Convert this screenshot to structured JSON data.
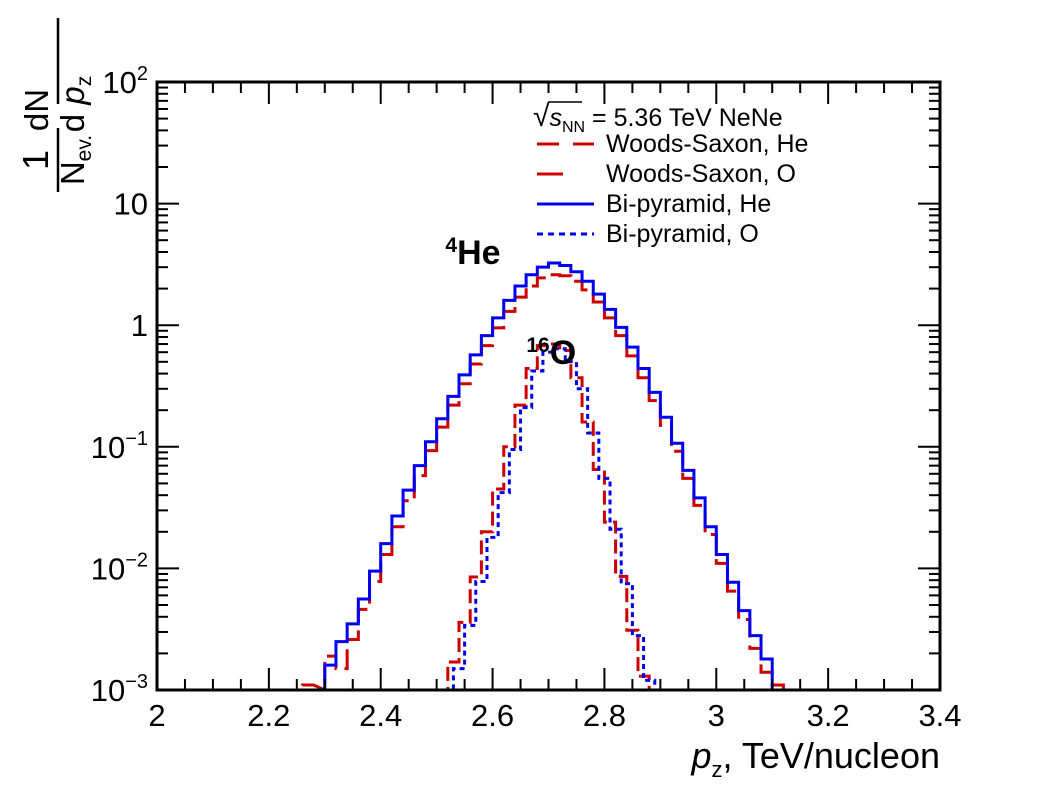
{
  "chart_data": {
    "type": "line",
    "style": "step-histogram",
    "xlabel_var": "p",
    "xlabel_sub": "z",
    "xlabel_rest": ", TeV/nucleon",
    "ylabel": {
      "frac1_num": "1",
      "frac1_den": "N",
      "frac1_den_sub": "ev.",
      "frac2_num": "dN",
      "frac2_den_d": "d ",
      "frac2_den_var": "p",
      "frac2_den_sub": "z"
    },
    "x_range": [
      2.0,
      3.4
    ],
    "y_range": [
      0.001,
      100
    ],
    "y_scale": "log",
    "x_ticks": [
      {
        "value": 2.0,
        "label": "2"
      },
      {
        "value": 2.2,
        "label": "2.2"
      },
      {
        "value": 2.4,
        "label": "2.4"
      },
      {
        "value": 2.6,
        "label": "2.6"
      },
      {
        "value": 2.8,
        "label": "2.8"
      },
      {
        "value": 3.0,
        "label": "3"
      },
      {
        "value": 3.2,
        "label": "3.2"
      },
      {
        "value": 3.4,
        "label": "3.4"
      }
    ],
    "y_ticks": [
      {
        "value": 0.001,
        "base": "10",
        "exp": "−3"
      },
      {
        "value": 0.01,
        "base": "10",
        "exp": "−2"
      },
      {
        "value": 0.1,
        "base": "10",
        "exp": "−1"
      },
      {
        "value": 1,
        "base": "1",
        "exp": ""
      },
      {
        "value": 10,
        "base": "10",
        "exp": ""
      },
      {
        "value": 100,
        "base": "10",
        "exp": "2"
      }
    ],
    "legend": {
      "header_sqrt": "√",
      "header_s": "s",
      "header_sub": "NN",
      "header_rest": " = 5.36 TeV NeNe",
      "position": "top-right"
    },
    "annotations": [
      {
        "sup": "4",
        "text": "He",
        "x": 2.565,
        "y": 3.2
      },
      {
        "sup": "16",
        "text": "O",
        "x": 2.705,
        "y": 0.48
      }
    ],
    "series": [
      {
        "name": "Woods-Saxon, He",
        "color": "#cc0000",
        "dash": "longdash",
        "bins": [
          [
            2.26,
            2.28,
            0.0011
          ],
          [
            2.3,
            2.32,
            0.0019
          ],
          [
            2.32,
            2.34,
            0.0015
          ],
          [
            2.34,
            2.36,
            0.0026
          ],
          [
            2.36,
            2.38,
            0.0046
          ],
          [
            2.38,
            2.4,
            0.0078
          ],
          [
            2.4,
            2.42,
            0.013
          ],
          [
            2.42,
            2.44,
            0.022
          ],
          [
            2.44,
            2.46,
            0.036
          ],
          [
            2.46,
            2.48,
            0.058
          ],
          [
            2.48,
            2.5,
            0.093
          ],
          [
            2.5,
            2.52,
            0.145
          ],
          [
            2.52,
            2.54,
            0.22
          ],
          [
            2.54,
            2.56,
            0.33
          ],
          [
            2.56,
            2.58,
            0.48
          ],
          [
            2.58,
            2.6,
            0.68
          ],
          [
            2.6,
            2.62,
            0.95
          ],
          [
            2.62,
            2.64,
            1.3
          ],
          [
            2.64,
            2.66,
            1.7
          ],
          [
            2.66,
            2.68,
            2.1
          ],
          [
            2.68,
            2.7,
            2.45
          ],
          [
            2.7,
            2.72,
            2.6
          ],
          [
            2.72,
            2.74,
            2.55
          ],
          [
            2.74,
            2.76,
            2.3
          ],
          [
            2.76,
            2.78,
            1.95
          ],
          [
            2.78,
            2.8,
            1.55
          ],
          [
            2.8,
            2.82,
            1.15
          ],
          [
            2.82,
            2.84,
            0.82
          ],
          [
            2.84,
            2.86,
            0.56
          ],
          [
            2.86,
            2.88,
            0.37
          ],
          [
            2.88,
            2.9,
            0.24
          ],
          [
            2.9,
            2.92,
            0.15
          ],
          [
            2.92,
            2.94,
            0.092
          ],
          [
            2.94,
            2.96,
            0.055
          ],
          [
            2.96,
            2.98,
            0.033
          ],
          [
            2.98,
            3.0,
            0.019
          ],
          [
            3.0,
            3.02,
            0.011
          ],
          [
            3.02,
            3.04,
            0.0065
          ],
          [
            3.04,
            3.06,
            0.0038
          ],
          [
            3.06,
            3.08,
            0.0022
          ],
          [
            3.08,
            3.1,
            0.0014
          ],
          [
            3.1,
            3.12,
            0.0011
          ]
        ]
      },
      {
        "name": "Woods-Saxon, O",
        "color": "#cc0000",
        "dash": "dash",
        "bins": [
          [
            2.52,
            2.54,
            0.0017
          ],
          [
            2.54,
            2.56,
            0.0036
          ],
          [
            2.56,
            2.58,
            0.0085
          ],
          [
            2.58,
            2.6,
            0.02
          ],
          [
            2.6,
            2.62,
            0.045
          ],
          [
            2.62,
            2.64,
            0.1
          ],
          [
            2.64,
            2.66,
            0.22
          ],
          [
            2.66,
            2.68,
            0.44
          ],
          [
            2.68,
            2.7,
            0.68
          ],
          [
            2.7,
            2.72,
            0.7
          ],
          [
            2.72,
            2.74,
            0.62
          ],
          [
            2.74,
            2.76,
            0.37
          ],
          [
            2.76,
            2.78,
            0.16
          ],
          [
            2.78,
            2.8,
            0.065
          ],
          [
            2.8,
            2.82,
            0.024
          ],
          [
            2.82,
            2.84,
            0.0086
          ],
          [
            2.84,
            2.86,
            0.0031
          ],
          [
            2.86,
            2.88,
            0.0013
          ]
        ]
      },
      {
        "name": "Bi-pyramid, He",
        "color": "#0000ee",
        "dash": "solid",
        "bins": [
          [
            2.3,
            2.32,
            0.0016
          ],
          [
            2.32,
            2.34,
            0.0025
          ],
          [
            2.34,
            2.36,
            0.0035
          ],
          [
            2.36,
            2.38,
            0.0056
          ],
          [
            2.38,
            2.4,
            0.0095
          ],
          [
            2.4,
            2.42,
            0.016
          ],
          [
            2.42,
            2.44,
            0.027
          ],
          [
            2.44,
            2.46,
            0.044
          ],
          [
            2.46,
            2.48,
            0.07
          ],
          [
            2.48,
            2.5,
            0.11
          ],
          [
            2.5,
            2.52,
            0.17
          ],
          [
            2.52,
            2.54,
            0.26
          ],
          [
            2.54,
            2.56,
            0.39
          ],
          [
            2.56,
            2.58,
            0.57
          ],
          [
            2.58,
            2.6,
            0.82
          ],
          [
            2.6,
            2.62,
            1.15
          ],
          [
            2.62,
            2.64,
            1.6
          ],
          [
            2.64,
            2.66,
            2.1
          ],
          [
            2.66,
            2.68,
            2.6
          ],
          [
            2.68,
            2.7,
            3.0
          ],
          [
            2.7,
            2.72,
            3.25
          ],
          [
            2.72,
            2.74,
            3.1
          ],
          [
            2.74,
            2.76,
            2.75
          ],
          [
            2.76,
            2.78,
            2.3
          ],
          [
            2.78,
            2.8,
            1.8
          ],
          [
            2.8,
            2.82,
            1.35
          ],
          [
            2.82,
            2.84,
            0.96
          ],
          [
            2.84,
            2.86,
            0.66
          ],
          [
            2.86,
            2.88,
            0.44
          ],
          [
            2.88,
            2.9,
            0.28
          ],
          [
            2.9,
            2.92,
            0.175
          ],
          [
            2.92,
            2.94,
            0.107
          ],
          [
            2.94,
            2.96,
            0.064
          ],
          [
            2.96,
            2.98,
            0.038
          ],
          [
            2.98,
            3.0,
            0.022
          ],
          [
            3.0,
            3.02,
            0.013
          ],
          [
            3.02,
            3.04,
            0.0077
          ],
          [
            3.04,
            3.06,
            0.0045
          ],
          [
            3.06,
            3.08,
            0.0028
          ],
          [
            3.08,
            3.1,
            0.0018
          ]
        ]
      },
      {
        "name": "Bi-pyramid, O",
        "color": "#0000ee",
        "dash": "dot",
        "bins": [
          [
            2.53,
            2.55,
            0.0015
          ],
          [
            2.55,
            2.57,
            0.0034
          ],
          [
            2.57,
            2.59,
            0.0078
          ],
          [
            2.59,
            2.61,
            0.018
          ],
          [
            2.61,
            2.63,
            0.042
          ],
          [
            2.63,
            2.65,
            0.095
          ],
          [
            2.65,
            2.67,
            0.21
          ],
          [
            2.67,
            2.69,
            0.42
          ],
          [
            2.69,
            2.71,
            0.6
          ],
          [
            2.71,
            2.73,
            0.64
          ],
          [
            2.73,
            2.75,
            0.5
          ],
          [
            2.75,
            2.77,
            0.3
          ],
          [
            2.77,
            2.79,
            0.13
          ],
          [
            2.79,
            2.81,
            0.055
          ],
          [
            2.81,
            2.83,
            0.021
          ],
          [
            2.83,
            2.85,
            0.0075
          ],
          [
            2.85,
            2.87,
            0.0028
          ],
          [
            2.87,
            2.89,
            0.0012
          ]
        ]
      }
    ]
  }
}
